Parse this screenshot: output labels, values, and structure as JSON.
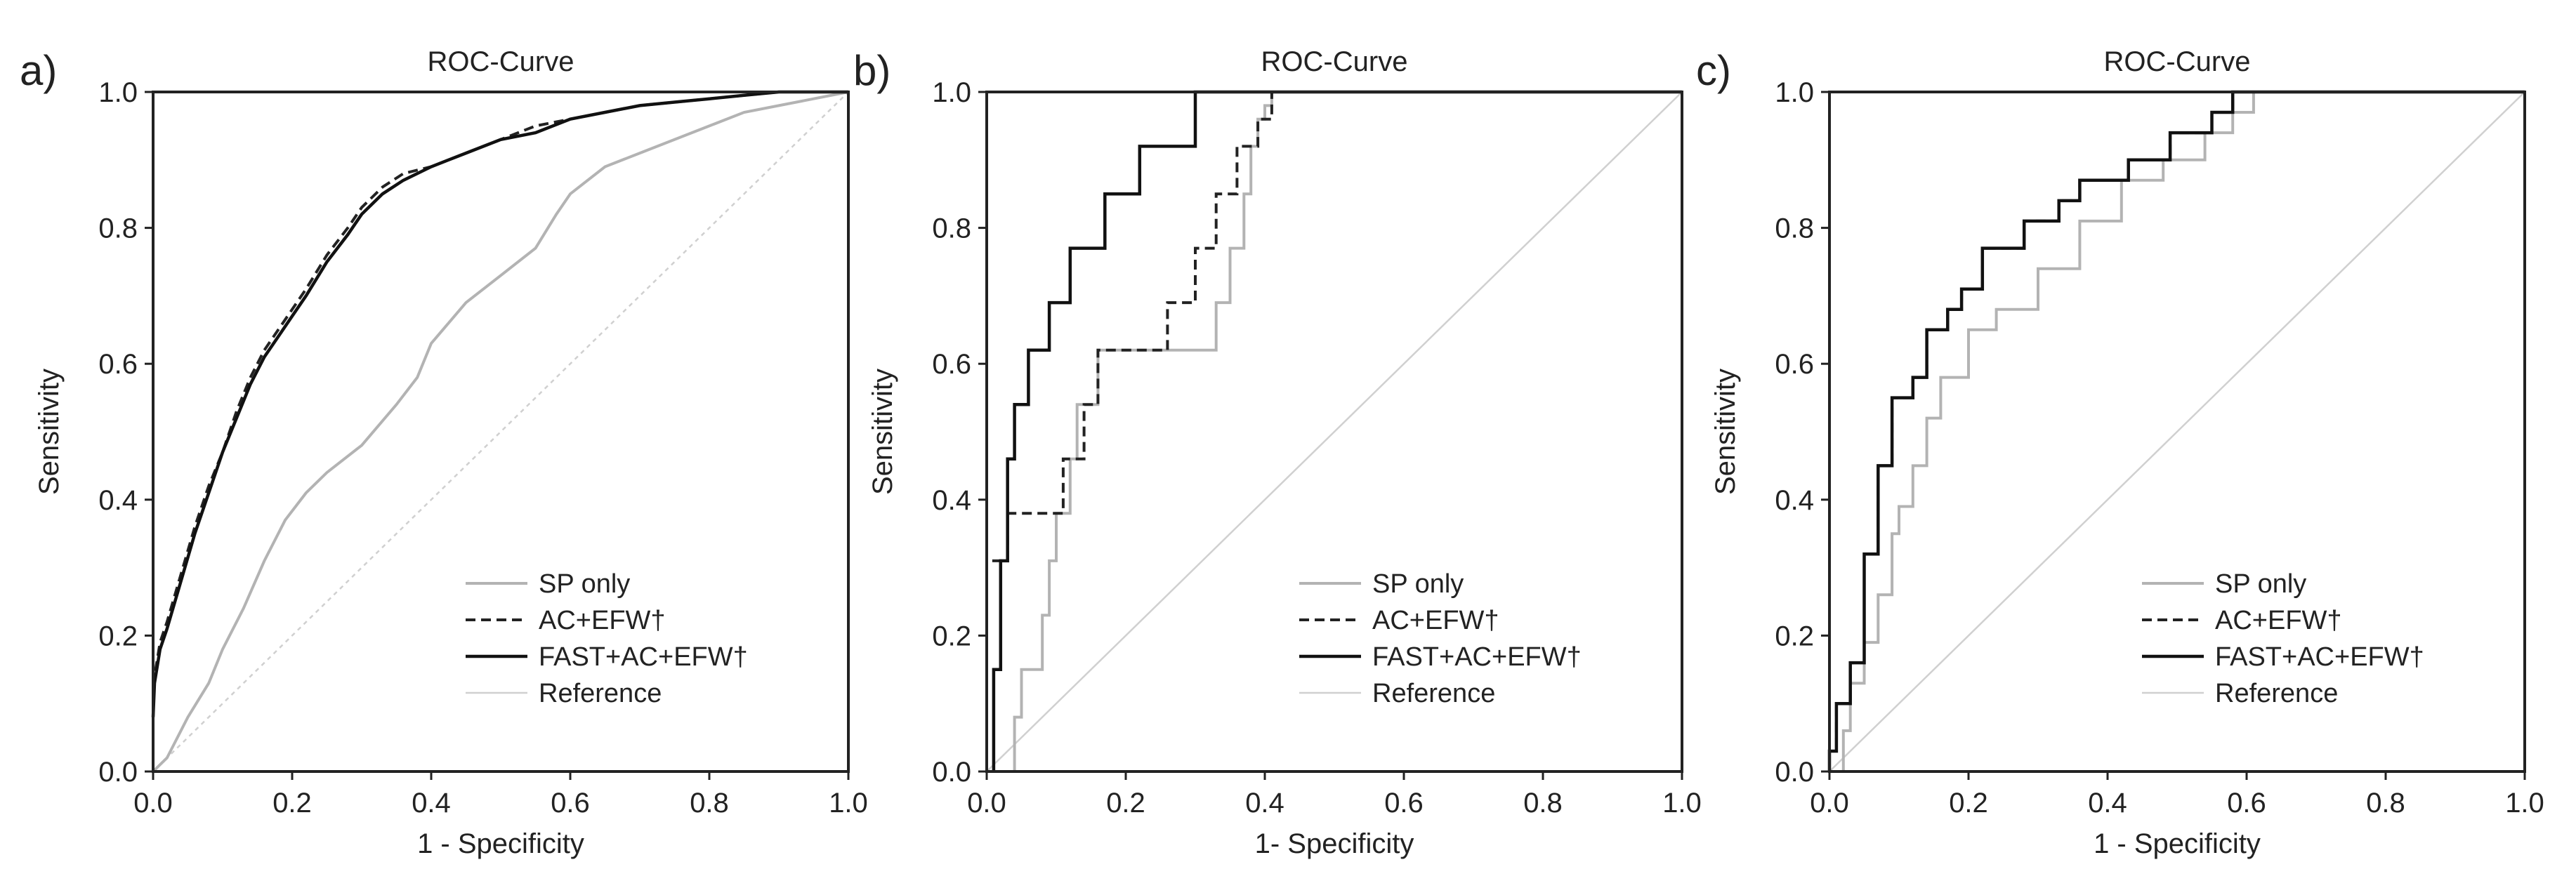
{
  "figure": {
    "panels": [
      {
        "letter": "a)",
        "title": "ROC-Curve",
        "xlabel": "1 - Specificity",
        "ylabel": "Sensitivity"
      },
      {
        "letter": "b)",
        "title": "ROC-Curve",
        "xlabel": "1- Specificity",
        "ylabel": "Sensitivity"
      },
      {
        "letter": "c)",
        "title": "ROC-Curve",
        "xlabel": "1 - Specificity",
        "ylabel": "Sensitivity"
      }
    ],
    "legend": [
      "SP only",
      "AC+EFW†",
      "FAST+AC+EFW†",
      "Reference"
    ],
    "ticks": [
      "0.0",
      "0.2",
      "0.4",
      "0.6",
      "0.8",
      "1.0"
    ]
  },
  "colors": {
    "sp_only": "#b3b3b3",
    "ac_efw": "#222222",
    "fast_ac_efw": "#111111",
    "reference": "#d0d0d0",
    "axis": "#222222"
  },
  "chart_data": [
    {
      "type": "line",
      "title": "ROC-Curve",
      "xlabel": "1 - Specificity",
      "ylabel": "Sensitivity",
      "xlim": [
        0,
        1
      ],
      "ylim": [
        0,
        1
      ],
      "legend_position": "bottom-right",
      "series": [
        {
          "name": "SP only",
          "style": "solid-gray",
          "x": [
            0,
            0.02,
            0.05,
            0.08,
            0.1,
            0.13,
            0.16,
            0.19,
            0.22,
            0.25,
            0.3,
            0.35,
            0.38,
            0.4,
            0.45,
            0.5,
            0.55,
            0.58,
            0.6,
            0.65,
            0.7,
            0.75,
            0.8,
            0.85,
            0.9,
            0.95,
            1.0
          ],
          "y": [
            0,
            0.02,
            0.08,
            0.13,
            0.18,
            0.24,
            0.31,
            0.37,
            0.41,
            0.44,
            0.48,
            0.54,
            0.58,
            0.63,
            0.69,
            0.73,
            0.77,
            0.82,
            0.85,
            0.89,
            0.91,
            0.93,
            0.95,
            0.97,
            0.98,
            0.99,
            1.0
          ]
        },
        {
          "name": "AC+EFW†",
          "style": "dashed-black",
          "x": [
            0,
            0.002,
            0.01,
            0.02,
            0.04,
            0.06,
            0.08,
            0.1,
            0.12,
            0.14,
            0.16,
            0.18,
            0.2,
            0.22,
            0.25,
            0.28,
            0.3,
            0.33,
            0.36,
            0.4,
            0.45,
            0.5,
            0.55,
            0.6,
            0.65,
            0.7,
            0.75,
            0.8,
            0.85,
            0.9,
            0.95,
            1.0
          ],
          "y": [
            0.08,
            0.14,
            0.19,
            0.22,
            0.29,
            0.36,
            0.42,
            0.47,
            0.53,
            0.58,
            0.62,
            0.65,
            0.68,
            0.71,
            0.76,
            0.8,
            0.83,
            0.86,
            0.88,
            0.89,
            0.91,
            0.93,
            0.95,
            0.96,
            0.97,
            0.98,
            0.985,
            0.99,
            0.995,
            1.0,
            1.0,
            1.0
          ]
        },
        {
          "name": "FAST+AC+EFW†",
          "style": "solid-black",
          "x": [
            0,
            0.002,
            0.01,
            0.02,
            0.04,
            0.06,
            0.08,
            0.1,
            0.12,
            0.14,
            0.16,
            0.18,
            0.2,
            0.22,
            0.25,
            0.28,
            0.3,
            0.33,
            0.36,
            0.4,
            0.45,
            0.5,
            0.55,
            0.6,
            0.65,
            0.7,
            0.75,
            0.8,
            0.85,
            0.9,
            0.95,
            1.0
          ],
          "y": [
            0.08,
            0.13,
            0.18,
            0.21,
            0.28,
            0.35,
            0.41,
            0.47,
            0.52,
            0.57,
            0.61,
            0.64,
            0.67,
            0.7,
            0.75,
            0.79,
            0.82,
            0.85,
            0.87,
            0.89,
            0.91,
            0.93,
            0.94,
            0.96,
            0.97,
            0.98,
            0.985,
            0.99,
            0.995,
            1.0,
            1.0,
            1.0
          ]
        },
        {
          "name": "Reference",
          "style": "dashed-lightgray",
          "x": [
            0,
            1
          ],
          "y": [
            0,
            1
          ]
        }
      ]
    },
    {
      "type": "line",
      "title": "ROC-Curve",
      "xlabel": "1- Specificity",
      "ylabel": "Sensitivity",
      "xlim": [
        0,
        1
      ],
      "ylim": [
        0,
        1
      ],
      "legend_position": "bottom-right",
      "series": [
        {
          "name": "SP only",
          "style": "solid-gray",
          "x": [
            0.04,
            0.04,
            0.05,
            0.05,
            0.08,
            0.08,
            0.09,
            0.09,
            0.1,
            0.1,
            0.12,
            0.12,
            0.13,
            0.13,
            0.16,
            0.16,
            0.33,
            0.33,
            0.35,
            0.35,
            0.37,
            0.37,
            0.38,
            0.38,
            0.39,
            0.39,
            0.4,
            0.4,
            0.41,
            0.41,
            1.0
          ],
          "y": [
            0,
            0.08,
            0.08,
            0.15,
            0.15,
            0.23,
            0.23,
            0.31,
            0.31,
            0.38,
            0.38,
            0.46,
            0.46,
            0.54,
            0.54,
            0.62,
            0.62,
            0.69,
            0.69,
            0.77,
            0.77,
            0.85,
            0.85,
            0.92,
            0.92,
            0.96,
            0.96,
            0.98,
            0.98,
            1.0,
            1.0
          ]
        },
        {
          "name": "AC+EFW†",
          "style": "dashed-black",
          "x": [
            0,
            0,
            0.01,
            0.01,
            0.03,
            0.03,
            0.05,
            0.05,
            0.11,
            0.11,
            0.14,
            0.14,
            0.16,
            0.16,
            0.26,
            0.26,
            0.3,
            0.3,
            0.33,
            0.33,
            0.36,
            0.36,
            0.39,
            0.39,
            0.41,
            0.41,
            1.0
          ],
          "y": [
            0,
            0.31,
            0.31,
            0.31,
            0.31,
            0.38,
            0.38,
            0.38,
            0.38,
            0.46,
            0.46,
            0.54,
            0.54,
            0.62,
            0.62,
            0.69,
            0.69,
            0.77,
            0.77,
            0.85,
            0.85,
            0.92,
            0.92,
            0.96,
            0.96,
            1.0,
            1.0
          ]
        },
        {
          "name": "FAST+AC+EFW†",
          "style": "solid-black",
          "x": [
            0.01,
            0.01,
            0.02,
            0.02,
            0.03,
            0.03,
            0.04,
            0.04,
            0.06,
            0.06,
            0.09,
            0.09,
            0.12,
            0.12,
            0.17,
            0.17,
            0.22,
            0.22,
            0.3,
            0.3,
            1.0
          ],
          "y": [
            0,
            0.15,
            0.15,
            0.31,
            0.31,
            0.46,
            0.46,
            0.54,
            0.54,
            0.62,
            0.62,
            0.69,
            0.69,
            0.77,
            0.77,
            0.85,
            0.85,
            0.92,
            0.92,
            1.0,
            1.0
          ]
        },
        {
          "name": "Reference",
          "style": "solid-lightgray",
          "x": [
            0,
            1
          ],
          "y": [
            0,
            1
          ]
        }
      ]
    },
    {
      "type": "line",
      "title": "ROC-Curve",
      "xlabel": "1 - Specificity",
      "ylabel": "Sensitivity",
      "xlim": [
        0,
        1
      ],
      "ylim": [
        0,
        1
      ],
      "legend_position": "bottom-right",
      "series": [
        {
          "name": "SP only",
          "style": "solid-gray",
          "x": [
            0.02,
            0.02,
            0.03,
            0.03,
            0.05,
            0.05,
            0.07,
            0.07,
            0.09,
            0.09,
            0.1,
            0.1,
            0.12,
            0.12,
            0.14,
            0.14,
            0.16,
            0.16,
            0.2,
            0.2,
            0.24,
            0.24,
            0.3,
            0.3,
            0.36,
            0.36,
            0.42,
            0.42,
            0.48,
            0.48,
            0.54,
            0.54,
            0.58,
            0.58,
            0.61,
            0.61,
            1.0
          ],
          "y": [
            0,
            0.06,
            0.06,
            0.13,
            0.13,
            0.19,
            0.19,
            0.26,
            0.26,
            0.35,
            0.35,
            0.39,
            0.39,
            0.45,
            0.45,
            0.52,
            0.52,
            0.58,
            0.58,
            0.65,
            0.65,
            0.68,
            0.68,
            0.74,
            0.74,
            0.81,
            0.81,
            0.87,
            0.87,
            0.9,
            0.9,
            0.94,
            0.94,
            0.97,
            0.97,
            1.0,
            1.0
          ]
        },
        {
          "name": "AC+EFW†",
          "style": "dashed-black",
          "x": [
            0,
            0,
            0.01,
            0.01,
            0.03,
            0.03,
            0.05,
            0.05,
            0.07,
            0.07,
            0.09,
            0.09,
            0.12,
            0.12,
            0.14,
            0.14,
            0.17,
            0.17,
            0.19,
            0.19,
            0.22,
            0.22,
            0.28,
            0.28,
            0.33,
            0.33,
            0.36,
            0.36,
            0.43,
            0.43,
            0.49,
            0.49,
            0.55,
            0.55,
            0.58,
            0.58,
            1.0
          ],
          "y": [
            0,
            0.03,
            0.03,
            0.1,
            0.1,
            0.16,
            0.16,
            0.32,
            0.32,
            0.45,
            0.45,
            0.55,
            0.55,
            0.58,
            0.58,
            0.65,
            0.65,
            0.68,
            0.68,
            0.71,
            0.71,
            0.77,
            0.77,
            0.81,
            0.81,
            0.84,
            0.84,
            0.87,
            0.87,
            0.9,
            0.9,
            0.94,
            0.94,
            0.97,
            0.97,
            1.0,
            1.0
          ]
        },
        {
          "name": "FAST+AC+EFW†",
          "style": "solid-black",
          "x": [
            0,
            0,
            0.01,
            0.01,
            0.03,
            0.03,
            0.05,
            0.05,
            0.07,
            0.07,
            0.09,
            0.09,
            0.12,
            0.12,
            0.14,
            0.14,
            0.17,
            0.17,
            0.19,
            0.19,
            0.22,
            0.22,
            0.28,
            0.28,
            0.33,
            0.33,
            0.36,
            0.36,
            0.43,
            0.43,
            0.49,
            0.49,
            0.55,
            0.55,
            0.58,
            0.58,
            1.0
          ],
          "y": [
            0,
            0.03,
            0.03,
            0.1,
            0.1,
            0.16,
            0.16,
            0.32,
            0.32,
            0.45,
            0.45,
            0.55,
            0.55,
            0.58,
            0.58,
            0.65,
            0.65,
            0.68,
            0.68,
            0.71,
            0.71,
            0.77,
            0.77,
            0.81,
            0.81,
            0.84,
            0.84,
            0.87,
            0.87,
            0.9,
            0.9,
            0.94,
            0.94,
            0.97,
            0.97,
            1.0,
            1.0
          ]
        },
        {
          "name": "Reference",
          "style": "solid-lightgray",
          "x": [
            0,
            1
          ],
          "y": [
            0,
            1
          ]
        }
      ]
    }
  ]
}
